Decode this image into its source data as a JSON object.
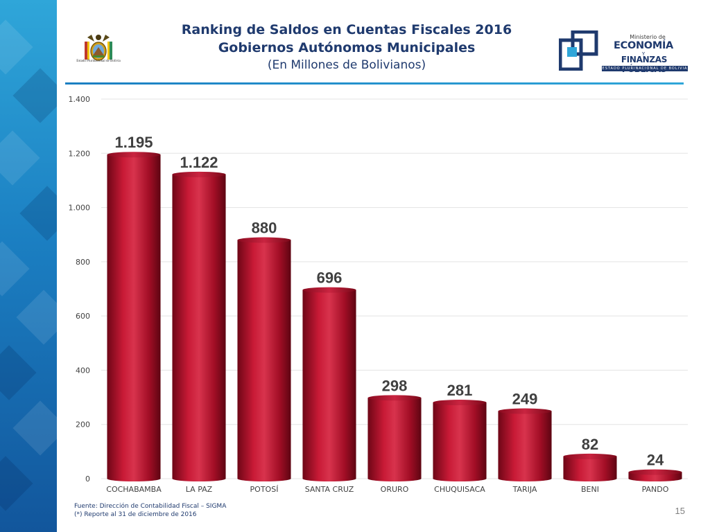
{
  "header": {
    "title_line1": "Ranking de Saldos en Cuentas Fiscales 2016",
    "title_line2": "Gobiernos Autónomos Municipales",
    "subtitle": "(En Millones de Bolivianos)",
    "coat_caption": "Estado Plurinacional de Bolivia"
  },
  "logo": {
    "line1": "Ministerio de",
    "line2": "ECONOMÍA",
    "line3": "Y",
    "line4": "FINANZAS PÚBLICAS",
    "line5": "ESTADO PLURINACIONAL DE BOLIVIA"
  },
  "colors": {
    "bar": "#b3102a",
    "bar_dark": "#6e0616",
    "bar_light": "#d8334d",
    "title": "#1f3a6e",
    "accent": "#1b7fc2"
  },
  "chart_data": {
    "type": "bar",
    "categories": [
      "COCHABAMBA",
      "LA PAZ",
      "POTOSÍ",
      "SANTA CRUZ",
      "ORURO",
      "CHUQUISACA",
      "TARIJA",
      "BENI",
      "PANDO"
    ],
    "values": [
      1195,
      1122,
      880,
      696,
      298,
      281,
      249,
      82,
      24
    ],
    "data_labels": [
      "1.195",
      "1.122",
      "880",
      "696",
      "298",
      "281",
      "249",
      "82",
      "24"
    ],
    "ylim": [
      0,
      1400
    ],
    "yticks": [
      0,
      200,
      400,
      600,
      800,
      1000,
      1200,
      1400
    ],
    "ytick_labels": [
      "0",
      "200",
      "400",
      "600",
      "800",
      "1.000",
      "1.200",
      "1.400"
    ],
    "grid": true,
    "legend": "none"
  },
  "footer": {
    "source": "Fuente: Dirección de Contabilidad Fiscal – SIGMA",
    "note": "(*) Reporte al 31 de diciembre de 2016",
    "page_number": "15"
  }
}
